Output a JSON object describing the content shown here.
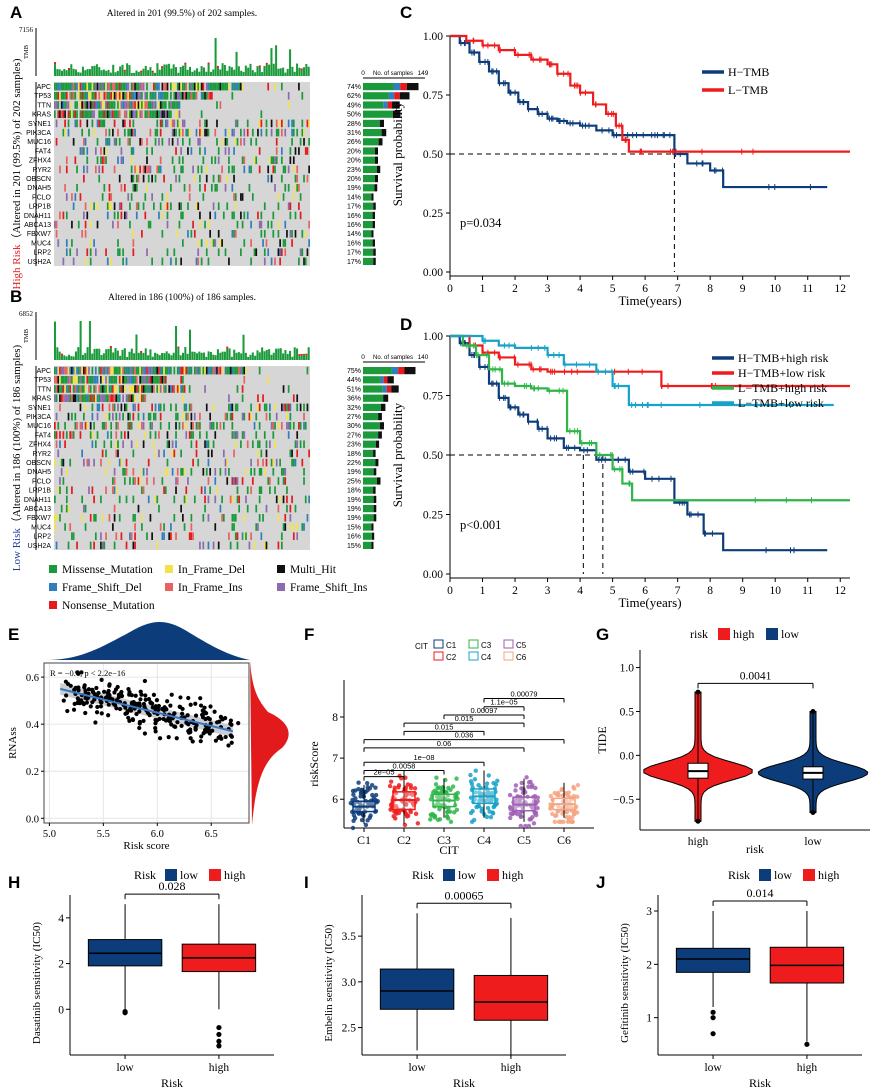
{
  "figure": {
    "panel_letters": [
      "A",
      "B",
      "C",
      "D",
      "E",
      "F",
      "G",
      "H",
      "I",
      "J"
    ],
    "colors": {
      "missense": "#1a9a3a",
      "frameshift_del": "#2f7fbf",
      "nonsense": "#e41a1c",
      "inframe_del": "#f2e34c",
      "inframe_ins": "#e8625f",
      "multi_hit": "#111111",
      "frameshift_ins": "#8c6bb1",
      "navy": "#0d3c7a",
      "red": "#ee1c1c",
      "green": "#2fb54a",
      "cyan": "#17a2c8"
    }
  },
  "oncoplot_legend": [
    "Missense_Mutation",
    "Frame_Shift_Del",
    "Nonsense_Mutation",
    "In_Frame_Del",
    "In_Frame_Ins",
    "Multi_Hit",
    "Frame_Shift_Ins"
  ],
  "chart_data": [
    {
      "panel": "A",
      "type": "oncoplot",
      "title": "Altered in 201 (99.5%) of 202 samples.",
      "group_label": "High Risk",
      "side_label": "（Altered in 201 (99.5%) of 202 samples)",
      "tmb_label": "TMB",
      "tmb_max": "7156",
      "bar_axis_title": "No. of samples",
      "bar_axis_ticks": [
        "0",
        "149"
      ],
      "genes": [
        "APC",
        "TP53",
        "TTN",
        "KRAS",
        "SYNE1",
        "PIK3CA",
        "MUC16",
        "FAT4",
        "ZFHX4",
        "RYR2",
        "OBSCN",
        "DNAH5",
        "PCLO",
        "LRP1B",
        "DNAH11",
        "ABCA13",
        "FBXW7",
        "MUC4",
        "LRP2",
        "USH2A"
      ],
      "percents": [
        "74%",
        "62%",
        "49%",
        "50%",
        "28%",
        "31%",
        "26%",
        "20%",
        "20%",
        "23%",
        "20%",
        "19%",
        "14%",
        "17%",
        "16%",
        "16%",
        "14%",
        "16%",
        "17%",
        "17%"
      ]
    },
    {
      "panel": "B",
      "type": "oncoplot",
      "title": "Altered in 186 (100%) of 186 samples.",
      "group_label": "Low Risk",
      "side_label": "（Altered in 186 (100%) of 186 samples)",
      "tmb_label": "TMB",
      "tmb_max": "6852",
      "bar_axis_title": "No. of samples",
      "bar_axis_ticks": [
        "0",
        "140"
      ],
      "genes": [
        "APC",
        "TP53",
        "TTN",
        "KRAS",
        "SYNE1",
        "PIK3CA",
        "MUC16",
        "FAT4",
        "ZFHX4",
        "RYR2",
        "OBSCN",
        "DNAH5",
        "PCLO",
        "LRP1B",
        "DNAH11",
        "ABCA13",
        "FBXW7",
        "MUC4",
        "LRP2",
        "USH2A"
      ],
      "percents": [
        "75%",
        "44%",
        "51%",
        "36%",
        "32%",
        "27%",
        "30%",
        "27%",
        "23%",
        "18%",
        "22%",
        "19%",
        "25%",
        "18%",
        "19%",
        "19%",
        "19%",
        "15%",
        "16%",
        "15%"
      ]
    },
    {
      "panel": "C",
      "type": "line",
      "subtype": "kaplan-meier",
      "xlabel": "Time(years)",
      "ylabel": "Survival probability",
      "xlim": [
        0,
        12
      ],
      "ylim": [
        0,
        1
      ],
      "xticks": [
        "0",
        "1",
        "2",
        "3",
        "4",
        "5",
        "6",
        "7",
        "8",
        "9",
        "10",
        "11",
        "12"
      ],
      "yticks": [
        "0.00",
        "0.25",
        "0.50",
        "0.75",
        "1.00"
      ],
      "pvalue": "p=0.034",
      "median_line_x": 6.9,
      "series": [
        {
          "name": "H−TMB",
          "color": "#0d3c7a",
          "x": [
            0,
            0.3,
            0.6,
            0.9,
            1.2,
            1.5,
            1.8,
            2.1,
            2.4,
            2.7,
            3.0,
            3.3,
            3.6,
            4.0,
            4.5,
            5.0,
            5.5,
            6.0,
            6.5,
            6.9,
            7.3,
            8.0,
            8.4,
            11.6
          ],
          "y": [
            1.0,
            0.97,
            0.93,
            0.89,
            0.85,
            0.8,
            0.76,
            0.72,
            0.69,
            0.67,
            0.65,
            0.64,
            0.63,
            0.62,
            0.6,
            0.58,
            0.58,
            0.58,
            0.58,
            0.5,
            0.46,
            0.43,
            0.36,
            0.36
          ]
        },
        {
          "name": "L−TMB",
          "color": "#ee1c1c",
          "x": [
            0,
            0.5,
            1.0,
            1.5,
            2.0,
            2.5,
            3.0,
            3.3,
            3.7,
            4.0,
            4.4,
            4.8,
            5.1,
            5.3,
            5.5,
            6.0,
            7.0,
            12.3
          ],
          "y": [
            1.0,
            0.98,
            0.96,
            0.94,
            0.92,
            0.9,
            0.88,
            0.84,
            0.79,
            0.76,
            0.71,
            0.67,
            0.62,
            0.56,
            0.51,
            0.51,
            0.51,
            0.51
          ]
        }
      ]
    },
    {
      "panel": "D",
      "type": "line",
      "subtype": "kaplan-meier",
      "xlabel": "Time(years)",
      "ylabel": "Survival probability",
      "xlim": [
        0,
        12
      ],
      "ylim": [
        0,
        1
      ],
      "xticks": [
        "0",
        "1",
        "2",
        "3",
        "4",
        "5",
        "6",
        "7",
        "8",
        "9",
        "10",
        "11",
        "12"
      ],
      "yticks": [
        "0.00",
        "0.25",
        "0.50",
        "0.75",
        "1.00"
      ],
      "pvalue": "p<0.001",
      "median_lines_x": [
        4.1,
        4.7
      ],
      "series": [
        {
          "name": "H−TMB+high risk",
          "color": "#0d3c7a",
          "x": [
            0,
            0.3,
            0.6,
            0.9,
            1.2,
            1.5,
            1.8,
            2.1,
            2.4,
            2.7,
            3.0,
            3.5,
            4.0,
            4.5,
            5.0,
            5.5,
            6.0,
            6.9,
            7.3,
            7.8,
            8.4,
            11.6
          ],
          "y": [
            1.0,
            0.97,
            0.92,
            0.87,
            0.8,
            0.74,
            0.7,
            0.67,
            0.64,
            0.61,
            0.57,
            0.53,
            0.52,
            0.48,
            0.48,
            0.43,
            0.4,
            0.3,
            0.25,
            0.17,
            0.1,
            0.1
          ]
        },
        {
          "name": "H−TMB+low risk",
          "color": "#ee1c1c",
          "x": [
            0,
            0.6,
            1.0,
            1.5,
            2.0,
            2.5,
            3.0,
            3.5,
            4.0,
            6.5,
            7.0,
            12.3
          ],
          "y": [
            1.0,
            0.96,
            0.93,
            0.91,
            0.88,
            0.86,
            0.85,
            0.85,
            0.85,
            0.79,
            0.79,
            0.79
          ]
        },
        {
          "name": "L−TMB+high risk",
          "color": "#2fb54a",
          "x": [
            0,
            0.4,
            0.8,
            1.2,
            1.6,
            2.0,
            2.5,
            3.0,
            3.6,
            4.0,
            4.5,
            5.0,
            5.3,
            5.6,
            12.3
          ],
          "y": [
            1.0,
            0.96,
            0.92,
            0.86,
            0.8,
            0.79,
            0.78,
            0.77,
            0.6,
            0.55,
            0.5,
            0.44,
            0.38,
            0.31,
            0.31
          ]
        },
        {
          "name": "L−TMB+low risk",
          "color": "#17a2c8",
          "x": [
            0,
            1.0,
            1.5,
            2.0,
            3.0,
            3.5,
            4.5,
            5.0,
            5.5,
            6.0,
            6.5,
            11.8
          ],
          "y": [
            1.0,
            0.98,
            0.96,
            0.95,
            0.92,
            0.88,
            0.85,
            0.79,
            0.71,
            0.71,
            0.71,
            0.71
          ]
        }
      ]
    },
    {
      "panel": "E",
      "type": "scatter",
      "xlabel": "Risk score",
      "ylabel": "RNAss",
      "annotation": "R = −0.4, p < 2.2e−16",
      "xlim": [
        5.0,
        6.8
      ],
      "ylim": [
        0,
        0.65
      ],
      "xticks": [
        "5.0",
        "5.5",
        "6.0",
        "6.5"
      ],
      "yticks": [
        "0.0",
        "0.2",
        "0.4",
        "0.6"
      ],
      "fit_line": {
        "x": [
          5.1,
          6.7
        ],
        "y": [
          0.55,
          0.37
        ]
      }
    },
    {
      "panel": "F",
      "type": "boxplot",
      "xlabel": "CIT",
      "ylabel": "riskScore",
      "legend_title": "CIT",
      "categories": [
        "C1",
        "C2",
        "C3",
        "C4",
        "C5",
        "C6"
      ],
      "colors": [
        "#0d3c7a",
        "#ee1c1c",
        "#2fb54a",
        "#17a2c8",
        "#9e5fb5",
        "#f4a582"
      ],
      "yticks": [
        "6",
        "7",
        "8"
      ],
      "ylim": [
        5.3,
        8.9
      ],
      "medians": [
        5.82,
        5.98,
        5.97,
        6.07,
        5.87,
        5.88
      ],
      "q1": [
        5.7,
        5.75,
        5.82,
        5.9,
        5.72,
        5.75
      ],
      "q3": [
        5.95,
        6.18,
        6.12,
        6.25,
        6.05,
        6.02
      ],
      "whisker_low": [
        5.4,
        5.4,
        5.55,
        5.55,
        5.45,
        5.55
      ],
      "whisker_high": [
        6.35,
        6.7,
        6.5,
        6.7,
        6.5,
        6.4
      ],
      "comparisons": [
        {
          "a": 0,
          "b": 1,
          "label": "2e−05"
        },
        {
          "a": 0,
          "b": 2,
          "label": "0.0058"
        },
        {
          "a": 0,
          "b": 3,
          "label": "1e−08"
        },
        {
          "a": 0,
          "b": 4,
          "label": "0.06"
        },
        {
          "a": 0,
          "b": 5,
          "label": "0.036"
        },
        {
          "a": 1,
          "b": 3,
          "label": "0.015"
        },
        {
          "a": 1,
          "b": 4,
          "label": "0.015"
        },
        {
          "a": 2,
          "b": 4,
          "label": "0.00097"
        },
        {
          "a": 3,
          "b": 4,
          "label": "1.1e−05"
        },
        {
          "a": 3,
          "b": 5,
          "label": "0.00079"
        }
      ]
    },
    {
      "panel": "G",
      "type": "violin",
      "xlabel": "risk",
      "ylabel": "TIDE",
      "legend_title": "risk",
      "legend_labels": [
        "high",
        "low"
      ],
      "categories": [
        "high",
        "low"
      ],
      "colors": [
        "#ee1c1c",
        "#0d3c7a"
      ],
      "yticks": [
        "−0.5",
        "0.0",
        "0.5",
        "1.0"
      ],
      "ylim": [
        -0.85,
        1.2
      ],
      "pvalue": "0.0041",
      "medians": [
        -0.18,
        -0.2
      ],
      "q1": [
        -0.26,
        -0.27
      ],
      "q3": [
        -0.09,
        -0.13
      ],
      "min": [
        -0.75,
        -0.65
      ],
      "max": [
        0.72,
        0.5
      ]
    },
    {
      "panel": "H",
      "type": "boxplot",
      "xlabel": "Risk",
      "ylabel": "Dasatinib sensitivity (IC50)",
      "legend_title": "Risk",
      "legend_labels": [
        "low",
        "high"
      ],
      "categories": [
        "low",
        "high"
      ],
      "colors": [
        "#0d3c7a",
        "#ee1c1c"
      ],
      "yticks": [
        "0",
        "2",
        "4"
      ],
      "ylim": [
        -2,
        5
      ],
      "pvalue": "0.028",
      "medians": [
        2.45,
        2.25
      ],
      "q1": [
        1.9,
        1.65
      ],
      "q3": [
        3.05,
        2.85
      ],
      "whisker_low": [
        0.0,
        0.0
      ],
      "whisker_high": [
        4.6,
        4.6
      ],
      "outliers": [
        [
          -0.1,
          -0.15
        ],
        [
          -0.8,
          -1.1,
          -1.4,
          -1.6
        ]
      ]
    },
    {
      "panel": "I",
      "type": "boxplot",
      "xlabel": "Risk",
      "ylabel": "Embelin sensitivity (IC50)",
      "legend_title": "Risk",
      "legend_labels": [
        "low",
        "high"
      ],
      "categories": [
        "low",
        "high"
      ],
      "colors": [
        "#0d3c7a",
        "#ee1c1c"
      ],
      "yticks": [
        "2.5",
        "3.0",
        "3.5"
      ],
      "ylim": [
        2.2,
        3.95
      ],
      "pvalue": "0.00065",
      "medians": [
        2.9,
        2.78
      ],
      "q1": [
        2.7,
        2.58
      ],
      "q3": [
        3.14,
        3.07
      ],
      "whisker_low": [
        2.25,
        2.18
      ],
      "whisker_high": [
        3.75,
        3.7
      ],
      "outliers": [
        [],
        []
      ]
    },
    {
      "panel": "J",
      "type": "boxplot",
      "xlabel": "Risk",
      "ylabel": "Gefitinib sensitivity (IC50)",
      "legend_title": "Risk",
      "legend_labels": [
        "low",
        "high"
      ],
      "categories": [
        "low",
        "high"
      ],
      "colors": [
        "#0d3c7a",
        "#ee1c1c"
      ],
      "yticks": [
        "1",
        "2",
        "3"
      ],
      "ylim": [
        0.3,
        3.3
      ],
      "pvalue": "0.014",
      "medians": [
        2.1,
        1.98
      ],
      "q1": [
        1.85,
        1.65
      ],
      "q3": [
        2.3,
        2.32
      ],
      "whisker_low": [
        1.2,
        0.55
      ],
      "whisker_high": [
        3.0,
        3.0
      ],
      "outliers": [
        [
          1.1,
          1.0,
          0.7
        ],
        [
          0.5
        ]
      ]
    }
  ]
}
